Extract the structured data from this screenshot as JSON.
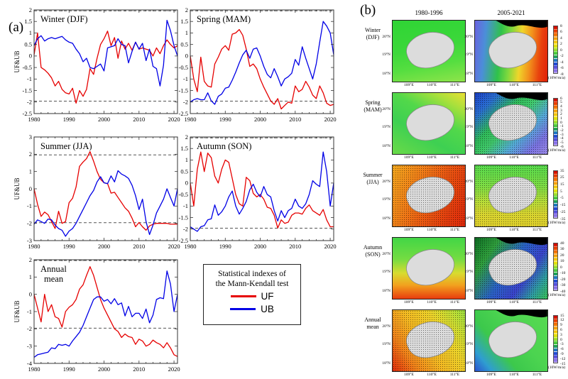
{
  "panel_a": {
    "label": "(a)",
    "ylabel": "UF&UB",
    "legend": {
      "title_line1": "Statistical indexes of",
      "title_line2": "the Mann-Kendall test",
      "items": [
        {
          "label": "UF",
          "color": "#e60000"
        },
        {
          "label": "UB",
          "color": "#0000e6"
        }
      ]
    }
  },
  "chart_data": [
    {
      "type": "line",
      "id": "winter-djf",
      "title": "Winter (DJF)",
      "x_range": [
        1980,
        2021
      ],
      "x_ticks": [
        1980,
        1990,
        2000,
        2010,
        2020
      ],
      "ylim": [
        -2.5,
        2
      ],
      "ytick_step": 0.5,
      "ref_lines": [
        1.96,
        -1.96
      ],
      "ylabel": "UF&UB",
      "grid": false,
      "series": [
        {
          "name": "UF",
          "color": "#e60000",
          "values": [
            0.05,
            1.0,
            -0.5,
            -0.6,
            -0.75,
            -0.95,
            -1.3,
            -1.1,
            -1.45,
            -1.6,
            -1.65,
            -1.4,
            -2.05,
            -1.5,
            -1.75,
            -1.45,
            -0.55,
            -0.8,
            -0.1,
            0.5,
            0.75,
            1.08,
            0.45,
            0.8,
            -0.1,
            0.65,
            0.3,
            0.55,
            0.25,
            0.6,
            0.3,
            0.35,
            0.3,
            0.25,
            0.0,
            0.35,
            0.1,
            0.45,
            0.7,
            0.5,
            0.35,
            0.45
          ]
        },
        {
          "name": "UB",
          "color": "#0000e6",
          "values": [
            0.45,
            0.75,
            0.88,
            0.65,
            0.75,
            0.8,
            0.75,
            0.8,
            0.85,
            0.7,
            0.6,
            0.55,
            0.3,
            0.1,
            -0.25,
            -0.1,
            -0.5,
            -0.55,
            -0.45,
            -0.35,
            -0.65,
            0.35,
            0.4,
            0.45,
            0.75,
            0.5,
            0.45,
            -0.3,
            0.2,
            0.6,
            0.3,
            0.55,
            -0.2,
            0.3,
            -0.45,
            -0.55,
            -1.3,
            -0.4,
            1.55,
            1.1,
            0.45,
            0.0
          ]
        }
      ]
    },
    {
      "type": "line",
      "id": "spring-mam",
      "title": "Spring (MAM)",
      "x_range": [
        1980,
        2021
      ],
      "x_ticks": [
        1980,
        1990,
        2000,
        2010,
        2020
      ],
      "ylim": [
        -2.5,
        2
      ],
      "ytick_step": 0.5,
      "ref_lines": [
        1.96,
        -1.96
      ],
      "ylabel": "",
      "grid": false,
      "series": [
        {
          "name": "UF",
          "color": "#e60000",
          "values": [
            0.0,
            -1.0,
            -1.55,
            -0.05,
            -1.1,
            -1.3,
            -1.35,
            -0.35,
            -0.05,
            0.3,
            0.45,
            0.25,
            0.95,
            1.0,
            1.15,
            0.9,
            0.3,
            -0.45,
            -0.35,
            -0.55,
            -1.0,
            -1.35,
            -1.65,
            -1.95,
            -2.1,
            -1.85,
            -2.3,
            -2.15,
            -2.0,
            -2.05,
            -1.3,
            -1.55,
            -1.45,
            -1.1,
            -1.35,
            -1.7,
            -1.85,
            -1.3,
            -1.6,
            -2.05,
            -2.15,
            -2.1
          ]
        },
        {
          "name": "UB",
          "color": "#0000e6",
          "values": [
            -2.0,
            -1.9,
            -1.85,
            -1.9,
            -1.9,
            -1.6,
            -1.95,
            -2.1,
            -1.75,
            -1.65,
            -1.4,
            -1.35,
            -1.05,
            -0.7,
            -0.3,
            0.05,
            0.25,
            -0.1,
            0.3,
            0.35,
            0.0,
            -0.45,
            -0.8,
            -0.95,
            -0.55,
            -0.9,
            -1.3,
            -1.0,
            -0.9,
            -0.75,
            -0.15,
            -0.4,
            0.4,
            -0.1,
            -0.55,
            -1.0,
            -0.35,
            0.6,
            1.5,
            1.3,
            1.0,
            0.05
          ]
        }
      ]
    },
    {
      "type": "line",
      "id": "summer-jja",
      "title": "Summer (JJA)",
      "x_range": [
        1980,
        2021
      ],
      "x_ticks": [
        1980,
        1990,
        2000,
        2010,
        2020
      ],
      "ylim": [
        -3,
        3
      ],
      "ytick_step": 1,
      "ref_lines": [
        1.96,
        -1.96
      ],
      "ylabel": "UF&UB",
      "grid": false,
      "series": [
        {
          "name": "UF",
          "color": "#e60000",
          "values": [
            0.0,
            -0.9,
            -1.6,
            -1.35,
            -1.5,
            -1.9,
            -2.3,
            -1.3,
            -2.0,
            -1.9,
            -0.8,
            -0.55,
            0.1,
            1.3,
            1.55,
            1.75,
            2.15,
            1.6,
            1.0,
            0.55,
            0.35,
            0.3,
            -0.25,
            -0.2,
            -0.5,
            -0.8,
            -1.1,
            -1.3,
            -1.7,
            -2.2,
            -1.95,
            -2.2,
            -2.4,
            -2.15,
            -2.05,
            -2.0,
            -2.0,
            -2.0,
            -2.0,
            -2.05,
            -2.05,
            -2.05
          ]
        },
        {
          "name": "UB",
          "color": "#0000e6",
          "values": [
            -2.05,
            -1.8,
            -1.9,
            -2.0,
            -1.75,
            -1.8,
            -2.1,
            -2.3,
            -2.4,
            -2.75,
            -2.45,
            -2.3,
            -2.0,
            -1.6,
            -1.2,
            -0.8,
            -0.4,
            -0.1,
            0.4,
            0.7,
            0.35,
            0.3,
            0.75,
            0.4,
            1.05,
            0.85,
            0.75,
            0.6,
            0.2,
            -0.4,
            -1.2,
            -0.6,
            -1.9,
            -2.65,
            -2.1,
            -1.4,
            -1.0,
            -0.6,
            0.0,
            -0.5,
            -1.0,
            0.0
          ]
        }
      ]
    },
    {
      "type": "line",
      "id": "autumn-son",
      "title": "Autumn (SON)",
      "x_range": [
        1980,
        2021
      ],
      "x_ticks": [
        1980,
        1990,
        2000,
        2010,
        2020
      ],
      "ylim": [
        -2.5,
        2
      ],
      "ytick_step": 0.5,
      "ref_lines": [
        1.96,
        -1.96
      ],
      "ylabel": "",
      "grid": false,
      "series": [
        {
          "name": "UF",
          "color": "#e60000",
          "values": [
            0.0,
            -1.0,
            0.6,
            1.35,
            0.5,
            1.3,
            1.1,
            0.3,
            0.0,
            0.6,
            1.0,
            0.9,
            0.2,
            -0.5,
            -0.9,
            -1.0,
            0.25,
            0.1,
            -0.45,
            -0.6,
            -0.5,
            -0.7,
            -1.05,
            -1.1,
            -1.4,
            -1.95,
            -1.6,
            -1.75,
            -1.7,
            -1.4,
            -1.3,
            -1.3,
            -1.35,
            -1.1,
            -0.95,
            -1.2,
            -1.3,
            -1.4,
            -1.15,
            -1.6,
            -1.9,
            -1.9
          ]
        },
        {
          "name": "UB",
          "color": "#0000e6",
          "values": [
            -1.9,
            -2.0,
            -2.1,
            -1.9,
            -1.85,
            -1.6,
            -1.55,
            -0.95,
            -1.4,
            -1.25,
            -1.0,
            -0.6,
            -0.35,
            -1.0,
            -1.35,
            -1.1,
            -0.8,
            -0.3,
            -0.05,
            -0.4,
            -0.6,
            -0.15,
            -0.5,
            -0.6,
            -1.2,
            -1.65,
            -1.2,
            -1.5,
            -1.2,
            -1.1,
            -0.7,
            -1.0,
            -1.1,
            -0.9,
            -0.5,
            0.1,
            -0.05,
            -0.15,
            1.35,
            0.5,
            -1.0,
            0.0
          ]
        }
      ]
    },
    {
      "type": "line",
      "id": "annual-mean",
      "title": "Annual\nmean",
      "x_range": [
        1980,
        2021
      ],
      "x_ticks": [
        1980,
        1990,
        2000,
        2010,
        2020
      ],
      "ylim": [
        -4,
        2
      ],
      "ytick_step": 1,
      "ref_lines": [
        1.96,
        -1.96
      ],
      "ylabel": "UF&UB",
      "grid": false,
      "series": [
        {
          "name": "UF",
          "color": "#e60000",
          "values": [
            0.0,
            -0.8,
            -1.6,
            0.0,
            -1.0,
            -0.6,
            -1.3,
            -1.4,
            -1.9,
            -1.0,
            -0.75,
            -0.6,
            -0.3,
            0.3,
            0.55,
            1.1,
            1.6,
            1.1,
            0.4,
            -0.3,
            -0.8,
            -1.2,
            -1.6,
            -2.0,
            -2.15,
            -2.5,
            -2.3,
            -2.45,
            -2.5,
            -2.9,
            -2.6,
            -2.7,
            -3.0,
            -2.9,
            -2.65,
            -2.8,
            -2.9,
            -3.1,
            -2.8,
            -3.1,
            -3.5,
            -3.6
          ]
        },
        {
          "name": "UB",
          "color": "#0000e6",
          "values": [
            -3.65,
            -3.5,
            -3.45,
            -3.4,
            -3.35,
            -3.1,
            -3.15,
            -2.9,
            -2.95,
            -2.9,
            -3.0,
            -2.7,
            -2.45,
            -2.2,
            -1.8,
            -1.3,
            -0.8,
            -0.3,
            -0.15,
            -0.15,
            -0.4,
            -0.3,
            -0.55,
            -0.25,
            -0.6,
            -0.5,
            -1.25,
            -0.7,
            -1.3,
            -1.1,
            -1.1,
            -1.4,
            -0.85,
            -1.65,
            -1.2,
            -0.3,
            -0.2,
            -0.25,
            1.35,
            0.6,
            -1.0,
            0.0
          ]
        }
      ]
    }
  ],
  "panel_b": {
    "label": "(b)",
    "col_headers": [
      "1980-1996",
      "2005-2021"
    ],
    "map_x_ticks": [
      "109°E",
      "110°E",
      "111°E"
    ],
    "map_y_ticks": [
      "20°N",
      "19°N",
      "18°N"
    ],
    "rows": [
      {
        "season": "Winter",
        "months": "(DJF)",
        "colorbar": {
          "ticks": [
            "8",
            "6",
            "4",
            "2",
            "0",
            "-2",
            "-4",
            "-6",
            "-8"
          ],
          "unit": "(10W/m/a)"
        }
      },
      {
        "season": "Spring",
        "months": "(MAM)",
        "colorbar": {
          "ticks": [
            "6",
            "5",
            "4",
            "3",
            "2",
            "1",
            "0",
            "-1",
            "-2",
            "-3",
            "-4",
            "-5",
            "-6"
          ],
          "unit": "(10W/m/a)"
        }
      },
      {
        "season": "Summer",
        "months": "(JJA)",
        "colorbar": {
          "ticks": [
            "35",
            "25",
            "15",
            "5",
            "-5",
            "-15",
            "-25",
            "-35"
          ],
          "unit": "(10W/m/a)"
        }
      },
      {
        "season": "Autumn",
        "months": "(SON)",
        "colorbar": {
          "ticks": [
            "40",
            "30",
            "20",
            "10",
            "0",
            "-10",
            "-20",
            "-30",
            "-40"
          ],
          "unit": "(10W/m/a)"
        }
      },
      {
        "season": "Annual",
        "months": "mean",
        "colorbar": {
          "ticks": [
            "15",
            "12",
            "9",
            "6",
            "3",
            "0",
            "-3",
            "-6",
            "-9",
            "-12",
            "-15"
          ],
          "unit": "(10W/m/a)"
        }
      }
    ]
  }
}
